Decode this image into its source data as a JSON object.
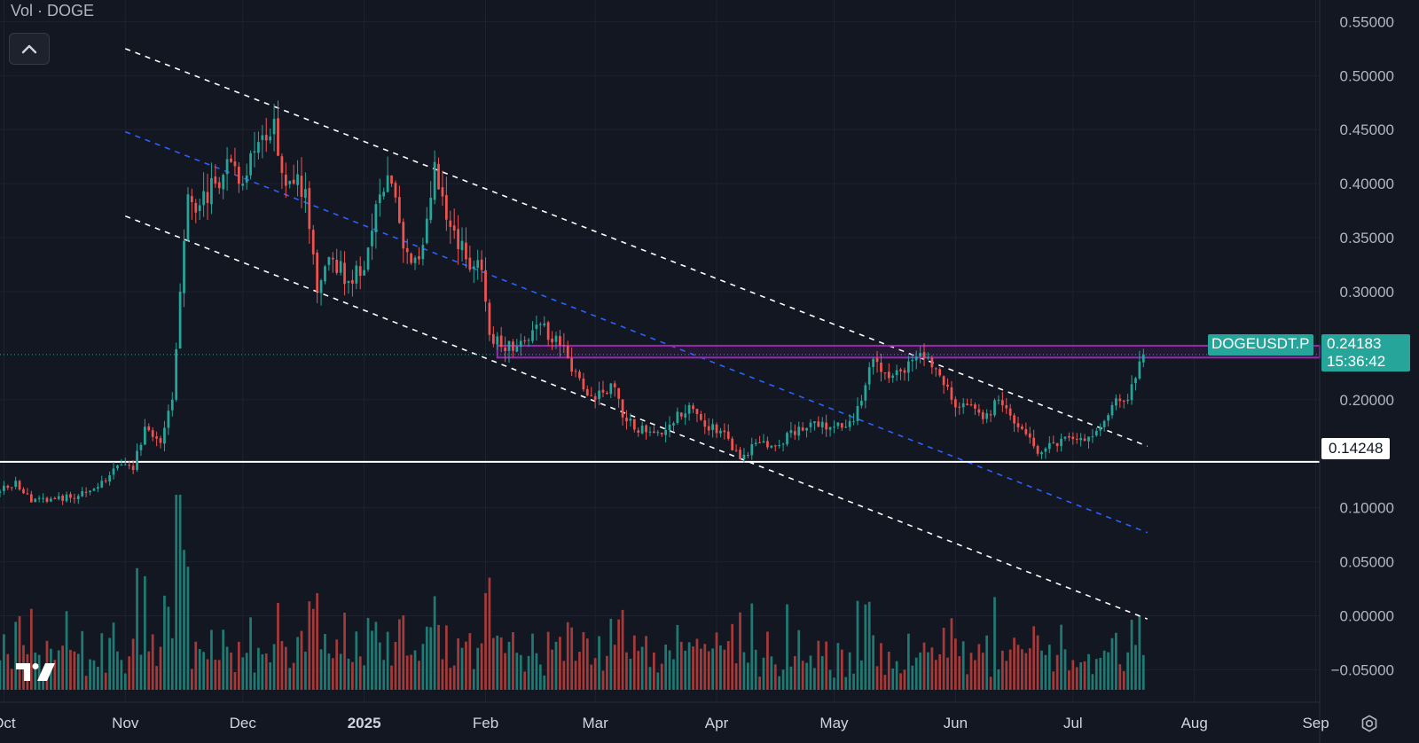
{
  "legend": {
    "text": "Vol · DOGE"
  },
  "price_tag": {
    "symbol": "DOGEUSDT.P",
    "price": "0.24183",
    "countdown": "15:36:42"
  },
  "support_tag": {
    "price": "0.14248"
  },
  "colors": {
    "background": "#131722",
    "grid": "#1e2230",
    "up": "#26a69a",
    "down": "#ef5350",
    "up_volume": "#1f7a73",
    "down_volume": "#a63a38",
    "channel": "#ffffff",
    "midline": "#2962ff",
    "zone": "#9c27b0",
    "support": "#ffffff",
    "price_tag": "#26a69a"
  },
  "icons": {
    "collapse": "chevron-up-icon",
    "logo": "tradingview-logo-icon",
    "settings": "settings-icon"
  },
  "chart_data": {
    "type": "candlestick",
    "title": "",
    "symbol": "DOGEUSDT.P",
    "xlabel": "",
    "ylabel": "",
    "x_range": [
      "2024-09-30",
      "2025-09-02"
    ],
    "ylim": [
      -0.08,
      0.57
    ],
    "grid": true,
    "x_ticks": [
      {
        "date": "2024-10-01",
        "label": "Oct"
      },
      {
        "date": "2024-11-01",
        "label": "Nov"
      },
      {
        "date": "2024-12-01",
        "label": "Dec"
      },
      {
        "date": "2025-01-01",
        "label": "2025"
      },
      {
        "date": "2025-02-01",
        "label": "Feb"
      },
      {
        "date": "2025-03-01",
        "label": "Mar"
      },
      {
        "date": "2025-04-01",
        "label": "Apr"
      },
      {
        "date": "2025-05-01",
        "label": "May"
      },
      {
        "date": "2025-06-01",
        "label": "Jun"
      },
      {
        "date": "2025-07-01",
        "label": "Jul"
      },
      {
        "date": "2025-08-01",
        "label": "Aug"
      },
      {
        "date": "2025-09-01",
        "label": "Sep"
      }
    ],
    "y_ticks": [
      {
        "value": 0.55,
        "label": "0.55000"
      },
      {
        "value": 0.5,
        "label": "0.50000"
      },
      {
        "value": 0.45,
        "label": "0.45000"
      },
      {
        "value": 0.4,
        "label": "0.40000"
      },
      {
        "value": 0.35,
        "label": "0.35000"
      },
      {
        "value": 0.3,
        "label": "0.30000"
      },
      {
        "value": 0.2,
        "label": "0.20000"
      },
      {
        "value": 0.1,
        "label": "0.10000"
      },
      {
        "value": 0.05,
        "label": "0.05000"
      },
      {
        "value": 0.0,
        "label": "0.00000"
      },
      {
        "value": -0.05,
        "label": "−0.05000"
      }
    ],
    "close_series": [
      [
        "2024-09-30",
        0.115
      ],
      [
        "2024-10-04",
        0.125
      ],
      [
        "2024-10-08",
        0.105
      ],
      [
        "2024-10-14",
        0.108
      ],
      [
        "2024-10-20",
        0.111
      ],
      [
        "2024-10-26",
        0.125
      ],
      [
        "2024-10-31",
        0.14
      ],
      [
        "2024-11-03",
        0.135
      ],
      [
        "2024-11-06",
        0.175
      ],
      [
        "2024-11-10",
        0.16
      ],
      [
        "2024-11-13",
        0.2
      ],
      [
        "2024-11-15",
        0.3
      ],
      [
        "2024-11-17",
        0.39
      ],
      [
        "2024-11-20",
        0.38
      ],
      [
        "2024-11-24",
        0.4
      ],
      [
        "2024-11-28",
        0.42
      ],
      [
        "2024-12-01",
        0.4
      ],
      [
        "2024-12-04",
        0.43
      ],
      [
        "2024-12-07",
        0.44
      ],
      [
        "2024-12-09",
        0.46
      ],
      [
        "2024-12-11",
        0.41
      ],
      [
        "2024-12-14",
        0.4
      ],
      [
        "2024-12-17",
        0.395
      ],
      [
        "2024-12-20",
        0.3
      ],
      [
        "2024-12-24",
        0.33
      ],
      [
        "2024-12-28",
        0.31
      ],
      [
        "2025-01-01",
        0.32
      ],
      [
        "2025-01-05",
        0.39
      ],
      [
        "2025-01-08",
        0.4
      ],
      [
        "2025-01-11",
        0.34
      ],
      [
        "2025-01-15",
        0.33
      ],
      [
        "2025-01-19",
        0.42
      ],
      [
        "2025-01-23",
        0.36
      ],
      [
        "2025-01-27",
        0.33
      ],
      [
        "2025-01-31",
        0.32
      ],
      [
        "2025-02-02",
        0.26
      ],
      [
        "2025-02-06",
        0.245
      ],
      [
        "2025-02-11",
        0.255
      ],
      [
        "2025-02-15",
        0.27
      ],
      [
        "2025-02-20",
        0.25
      ],
      [
        "2025-02-25",
        0.22
      ],
      [
        "2025-03-01",
        0.2
      ],
      [
        "2025-03-05",
        0.215
      ],
      [
        "2025-03-09",
        0.18
      ],
      [
        "2025-03-14",
        0.17
      ],
      [
        "2025-03-19",
        0.172
      ],
      [
        "2025-03-25",
        0.195
      ],
      [
        "2025-03-29",
        0.175
      ],
      [
        "2025-04-03",
        0.17
      ],
      [
        "2025-04-07",
        0.145
      ],
      [
        "2025-04-11",
        0.16
      ],
      [
        "2025-04-17",
        0.158
      ],
      [
        "2025-04-22",
        0.175
      ],
      [
        "2025-04-26",
        0.18
      ],
      [
        "2025-05-01",
        0.175
      ],
      [
        "2025-05-06",
        0.18
      ],
      [
        "2025-05-10",
        0.23
      ],
      [
        "2025-05-12",
        0.235
      ],
      [
        "2025-05-15",
        0.22
      ],
      [
        "2025-05-19",
        0.225
      ],
      [
        "2025-05-22",
        0.24
      ],
      [
        "2025-05-26",
        0.23
      ],
      [
        "2025-05-31",
        0.2
      ],
      [
        "2025-06-04",
        0.195
      ],
      [
        "2025-06-08",
        0.182
      ],
      [
        "2025-06-12",
        0.2
      ],
      [
        "2025-06-16",
        0.178
      ],
      [
        "2025-06-20",
        0.165
      ],
      [
        "2025-06-22",
        0.15
      ],
      [
        "2025-06-26",
        0.16
      ],
      [
        "2025-06-30",
        0.165
      ],
      [
        "2025-07-04",
        0.162
      ],
      [
        "2025-07-08",
        0.175
      ],
      [
        "2025-07-11",
        0.195
      ],
      [
        "2025-07-15",
        0.2
      ],
      [
        "2025-07-17",
        0.22
      ],
      [
        "2025-07-19",
        0.24183
      ]
    ],
    "annotations": [
      {
        "type": "trend_line",
        "style": "dashed",
        "color": "white",
        "role": "channel_upper",
        "points": [
          [
            "2024-11-01",
            0.525
          ],
          [
            "2025-07-20",
            0.157
          ]
        ]
      },
      {
        "type": "trend_line",
        "style": "dashed",
        "color": "blue",
        "role": "channel_mid",
        "points": [
          [
            "2024-11-01",
            0.448
          ],
          [
            "2025-07-20",
            0.077
          ]
        ]
      },
      {
        "type": "trend_line",
        "style": "dashed",
        "color": "white",
        "role": "channel_lower",
        "points": [
          [
            "2024-11-01",
            0.37
          ],
          [
            "2025-07-20",
            -0.003
          ]
        ]
      },
      {
        "type": "zone",
        "color": "purple",
        "from": "2025-02-04",
        "to": "2025-09-02",
        "y": [
          0.239,
          0.25
        ]
      },
      {
        "type": "horizontal_line",
        "style": "solid",
        "color": "white",
        "value": 0.14248
      },
      {
        "type": "horizontal_line",
        "style": "dotted",
        "color": "teal",
        "value": 0.24183
      }
    ]
  }
}
